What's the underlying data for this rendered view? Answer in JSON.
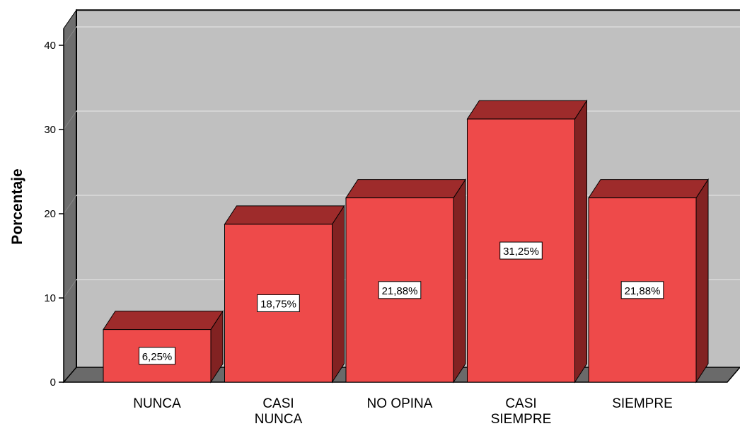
{
  "chart_data": {
    "type": "bar",
    "title": "",
    "xlabel": "",
    "ylabel": "Porcentaje",
    "ylim": [
      0,
      42
    ],
    "yticks": [
      0,
      10,
      20,
      30,
      40
    ],
    "grid": true,
    "style": "3d",
    "categories": [
      [
        "NUNCA"
      ],
      [
        "CASI",
        "NUNCA"
      ],
      [
        "NO OPINA"
      ],
      [
        "CASI",
        "SIEMPRE"
      ],
      [
        "SIEMPRE"
      ]
    ],
    "values": [
      6.25,
      18.75,
      21.88,
      31.25,
      21.88
    ],
    "data_labels": [
      "6,25%",
      "18,75%",
      "21,88%",
      "31,25%",
      "21,88%"
    ]
  },
  "colors": {
    "bar_front": "#ee4a4a",
    "bar_top": "#9e2b2b",
    "bar_side": "#822222",
    "plot_back": "#c0c0c0",
    "plot_left_wall": "#6e6e6e",
    "plot_floor": "#6a6a6a",
    "grid": "#d4d4d4"
  }
}
